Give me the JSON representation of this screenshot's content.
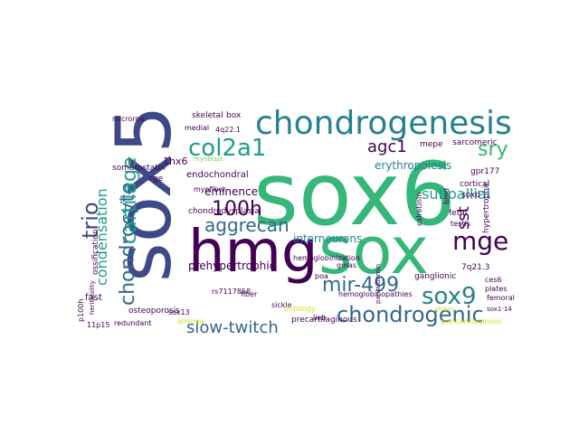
{
  "palette": {
    "yellow": "#d0e11c",
    "lime": "#73d056",
    "green": "#35b779",
    "teal": "#1f9e89",
    "cyan": "#26828e",
    "blue": "#31688e",
    "indigo": "#3e4989",
    "purple": "#482878",
    "dark": "#440154",
    "background": "#ffffff"
  },
  "words": [
    {
      "text": "sox6"
    },
    {
      "text": "sox5"
    },
    {
      "text": "hmg"
    },
    {
      "text": "sox"
    },
    {
      "text": "chondrogenesis"
    },
    {
      "text": "col2a1"
    },
    {
      "text": "mge"
    },
    {
      "text": "sox9"
    },
    {
      "text": "chondrogenic"
    },
    {
      "text": "chondrocyte"
    },
    {
      "text": "cartilage"
    },
    {
      "text": "trio"
    },
    {
      "text": "condensation"
    },
    {
      "text": "sry"
    },
    {
      "text": "agc1"
    },
    {
      "text": "100h"
    },
    {
      "text": "aggrecan"
    },
    {
      "text": "mir-499"
    },
    {
      "text": "slow-twitch"
    },
    {
      "text": "sst"
    },
    {
      "text": "subpallial"
    },
    {
      "text": "erythropoiesis"
    },
    {
      "text": "interneurons"
    },
    {
      "text": "prehypertrophic"
    },
    {
      "text": "eminence"
    },
    {
      "text": "endochondral"
    },
    {
      "text": "1hx6"
    },
    {
      "text": "somatostatin"
    },
    {
      "text": "skeletal"
    },
    {
      "text": "box"
    },
    {
      "text": "sarcomeric"
    },
    {
      "text": "mepe"
    },
    {
      "text": "microrna"
    },
    {
      "text": "medial"
    },
    {
      "text": "4q22.1"
    },
    {
      "text": "cge"
    },
    {
      "text": "myofiber"
    },
    {
      "text": "chondrodysplasia"
    },
    {
      "text": "hemoglobinization"
    },
    {
      "text": "hemoglobinopathies"
    },
    {
      "text": "precartilaginous"
    },
    {
      "text": "ganglionic"
    },
    {
      "text": "7q21.3"
    },
    {
      "text": "gpr177"
    },
    {
      "text": "cortical"
    },
    {
      "text": "soxd"
    },
    {
      "text": "calretinin"
    },
    {
      "text": "hypertrophic"
    },
    {
      "text": "fetal"
    },
    {
      "text": "testis"
    },
    {
      "text": "ces6"
    },
    {
      "text": "plates"
    },
    {
      "text": "femoral"
    },
    {
      "text": "pancartilaginous"
    },
    {
      "text": "fiber"
    },
    {
      "text": "sickle"
    },
    {
      "text": "lieb"
    },
    {
      "text": "ontology"
    },
    {
      "text": "anemia"
    },
    {
      "text": "rs7117858"
    },
    {
      "text": "sox13"
    },
    {
      "text": "osteoporosis"
    },
    {
      "text": "fast"
    },
    {
      "text": "ossification"
    },
    {
      "text": "heritability"
    },
    {
      "text": "redundant"
    },
    {
      "text": "p100h"
    },
    {
      "text": "11p15"
    },
    {
      "text": "parvalbumin"
    },
    {
      "text": "gmas"
    },
    {
      "text": "poa"
    },
    {
      "text": "bmd"
    },
    {
      "text": "globin"
    },
    {
      "text": "myoblast"
    },
    {
      "text": "sox1-14"
    }
  ]
}
